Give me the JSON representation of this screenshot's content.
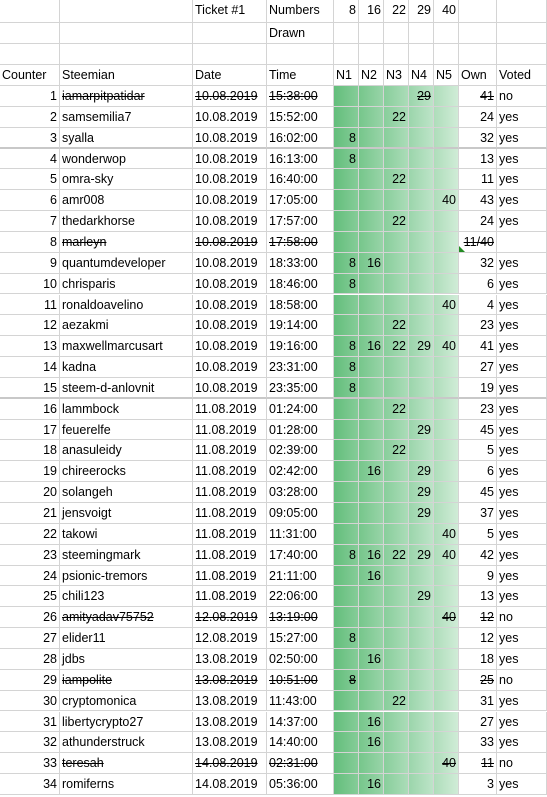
{
  "top": {
    "ticket_label": "Ticket #1",
    "numbers_label": "Numbers",
    "drawn_label": "Drawn",
    "drawn_numbers": [
      "8",
      "16",
      "22",
      "29",
      "40"
    ]
  },
  "headers": [
    "Counter",
    "Steemian",
    "Date",
    "Time",
    "N1",
    "N2",
    "N3",
    "N4",
    "N5",
    "Own",
    "Voted"
  ],
  "rows": [
    {
      "counter": "1",
      "name": "iamarpitpatidar",
      "date": "10.08.2019",
      "time": "15:38:00",
      "n": [
        "",
        "",
        "",
        "29",
        ""
      ],
      "own": "41",
      "voted": "no",
      "strike": true
    },
    {
      "counter": "2",
      "name": "samsemilia7",
      "date": "10.08.2019",
      "time": "15:52:00",
      "n": [
        "",
        "",
        "22",
        "",
        ""
      ],
      "own": "24",
      "voted": "yes",
      "strike": false
    },
    {
      "counter": "3",
      "name": "syalla",
      "date": "10.08.2019",
      "time": "16:02:00",
      "n": [
        "8",
        "",
        "",
        "",
        ""
      ],
      "own": "32",
      "voted": "yes",
      "strike": false
    },
    {
      "counter": "4",
      "name": "wonderwop",
      "date": "10.08.2019",
      "time": "16:13:00",
      "n": [
        "8",
        "",
        "",
        "",
        ""
      ],
      "own": "13",
      "voted": "yes",
      "strike": false
    },
    {
      "counter": "5",
      "name": "omra-sky",
      "date": "10.08.2019",
      "time": "16:40:00",
      "n": [
        "",
        "",
        "22",
        "",
        ""
      ],
      "own": "11",
      "voted": "yes",
      "strike": false
    },
    {
      "counter": "6",
      "name": "amr008",
      "date": "10.08.2019",
      "time": "17:05:00",
      "n": [
        "",
        "",
        "",
        "",
        "40"
      ],
      "own": "43",
      "voted": "yes",
      "strike": false
    },
    {
      "counter": "7",
      "name": "thedarkhorse",
      "date": "10.08.2019",
      "time": "17:57:00",
      "n": [
        "",
        "",
        "22",
        "",
        ""
      ],
      "own": "24",
      "voted": "yes",
      "strike": false
    },
    {
      "counter": "8",
      "name": "marleyn",
      "date": "10.08.2019",
      "time": "17:58:00",
      "n": [
        "",
        "",
        "",
        "",
        ""
      ],
      "own": "11/40",
      "voted": "",
      "strike": true
    },
    {
      "counter": "9",
      "name": "quantumdeveloper",
      "date": "10.08.2019",
      "time": "18:33:00",
      "n": [
        "8",
        "16",
        "",
        "",
        ""
      ],
      "own": "32",
      "voted": "yes",
      "strike": false
    },
    {
      "counter": "10",
      "name": "chrisparis",
      "date": "10.08.2019",
      "time": "18:46:00",
      "n": [
        "8",
        "",
        "",
        "",
        ""
      ],
      "own": "6",
      "voted": "yes",
      "strike": false
    },
    {
      "counter": "11",
      "name": "ronaldoavelino",
      "date": "10.08.2019",
      "time": "18:58:00",
      "n": [
        "",
        "",
        "",
        "",
        "40"
      ],
      "own": "4",
      "voted": "yes",
      "strike": false
    },
    {
      "counter": "12",
      "name": "aezakmi",
      "date": "10.08.2019",
      "time": "19:14:00",
      "n": [
        "",
        "",
        "22",
        "",
        ""
      ],
      "own": "23",
      "voted": "yes",
      "strike": false
    },
    {
      "counter": "13",
      "name": "maxwellmarcusart",
      "date": "10.08.2019",
      "time": "19:16:00",
      "n": [
        "8",
        "16",
        "22",
        "29",
        "40"
      ],
      "own": "41",
      "voted": "yes",
      "strike": false
    },
    {
      "counter": "14",
      "name": "kadna",
      "date": "10.08.2019",
      "time": "23:31:00",
      "n": [
        "8",
        "",
        "",
        "",
        ""
      ],
      "own": "27",
      "voted": "yes",
      "strike": false
    },
    {
      "counter": "15",
      "name": "steem-d-anlovnit",
      "date": "10.08.2019",
      "time": "23:35:00",
      "n": [
        "8",
        "",
        "",
        "",
        ""
      ],
      "own": "19",
      "voted": "yes",
      "strike": false
    },
    {
      "counter": "16",
      "name": "lammbock",
      "date": "11.08.2019",
      "time": "01:24:00",
      "n": [
        "",
        "",
        "22",
        "",
        ""
      ],
      "own": "23",
      "voted": "yes",
      "strike": false
    },
    {
      "counter": "17",
      "name": "feuerelfe",
      "date": "11.08.2019",
      "time": "01:28:00",
      "n": [
        "",
        "",
        "",
        "29",
        ""
      ],
      "own": "45",
      "voted": "yes",
      "strike": false
    },
    {
      "counter": "18",
      "name": "anasuleidy",
      "date": "11.08.2019",
      "time": "02:39:00",
      "n": [
        "",
        "",
        "22",
        "",
        ""
      ],
      "own": "5",
      "voted": "yes",
      "strike": false
    },
    {
      "counter": "19",
      "name": "chireerocks",
      "date": "11.08.2019",
      "time": "02:42:00",
      "n": [
        "",
        "16",
        "",
        "29",
        ""
      ],
      "own": "6",
      "voted": "yes",
      "strike": false
    },
    {
      "counter": "20",
      "name": "solangeh",
      "date": "11.08.2019",
      "time": "03:28:00",
      "n": [
        "",
        "",
        "",
        "29",
        ""
      ],
      "own": "45",
      "voted": "yes",
      "strike": false
    },
    {
      "counter": "21",
      "name": "jensvoigt",
      "date": "11.08.2019",
      "time": "09:05:00",
      "n": [
        "",
        "",
        "",
        "29",
        ""
      ],
      "own": "37",
      "voted": "yes",
      "strike": false
    },
    {
      "counter": "22",
      "name": "takowi",
      "date": "11.08.2019",
      "time": "11:31:00",
      "n": [
        "",
        "",
        "",
        "",
        "40"
      ],
      "own": "5",
      "voted": "yes",
      "strike": false
    },
    {
      "counter": "23",
      "name": "steemingmark",
      "date": "11.08.2019",
      "time": "17:40:00",
      "n": [
        "8",
        "16",
        "22",
        "29",
        "40"
      ],
      "own": "42",
      "voted": "yes",
      "strike": false
    },
    {
      "counter": "24",
      "name": "psionic-tremors",
      "date": "11.08.2019",
      "time": "21:11:00",
      "n": [
        "",
        "16",
        "",
        "",
        ""
      ],
      "own": "9",
      "voted": "yes",
      "strike": false
    },
    {
      "counter": "25",
      "name": "chili123",
      "date": "11.08.2019",
      "time": "22:06:00",
      "n": [
        "",
        "",
        "",
        "29",
        ""
      ],
      "own": "13",
      "voted": "yes",
      "strike": false
    },
    {
      "counter": "26",
      "name": "amityadav75752",
      "date": "12.08.2019",
      "time": "13:19:00",
      "n": [
        "",
        "",
        "",
        "",
        "40"
      ],
      "own": "12",
      "voted": "no",
      "strike": true
    },
    {
      "counter": "27",
      "name": "elider11",
      "date": "12.08.2019",
      "time": "15:27:00",
      "n": [
        "8",
        "",
        "",
        "",
        ""
      ],
      "own": "12",
      "voted": "yes",
      "strike": false
    },
    {
      "counter": "28",
      "name": "jdbs",
      "date": "13.08.2019",
      "time": "02:50:00",
      "n": [
        "",
        "16",
        "",
        "",
        ""
      ],
      "own": "18",
      "voted": "yes",
      "strike": false
    },
    {
      "counter": "29",
      "name": "iampolite",
      "date": "13.08.2019",
      "time": "10:51:00",
      "n": [
        "8",
        "",
        "",
        "",
        ""
      ],
      "own": "25",
      "voted": "no",
      "strike": true
    },
    {
      "counter": "30",
      "name": "cryptomonica",
      "date": "13.08.2019",
      "time": "11:43:00",
      "n": [
        "",
        "",
        "22",
        "",
        ""
      ],
      "own": "31",
      "voted": "yes",
      "strike": false
    },
    {
      "counter": "31",
      "name": "libertycrypto27",
      "date": "13.08.2019",
      "time": "14:37:00",
      "n": [
        "",
        "16",
        "",
        "",
        ""
      ],
      "own": "27",
      "voted": "yes",
      "strike": false
    },
    {
      "counter": "32",
      "name": "athunderstruck",
      "date": "13.08.2019",
      "time": "14:40:00",
      "n": [
        "",
        "16",
        "",
        "",
        ""
      ],
      "own": "33",
      "voted": "yes",
      "strike": false
    },
    {
      "counter": "33",
      "name": "teresah",
      "date": "14.08.2019",
      "time": "02:31:00",
      "n": [
        "",
        "",
        "",
        "",
        "40"
      ],
      "own": "11",
      "voted": "no",
      "strike": true
    },
    {
      "counter": "34",
      "name": "romiferns",
      "date": "14.08.2019",
      "time": "05:36:00",
      "n": [
        "",
        "16",
        "",
        "",
        ""
      ],
      "own": "3",
      "voted": "yes",
      "strike": false
    }
  ]
}
